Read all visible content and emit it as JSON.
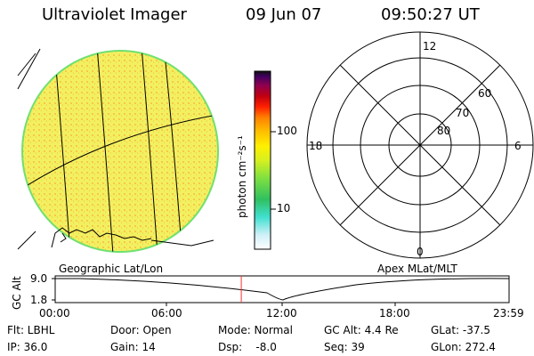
{
  "header": {
    "instrument": "Ultraviolet Imager",
    "date": "09 Jun 07",
    "time": "09:50:27 UT"
  },
  "colorbar": {
    "label": "photon cm⁻²s⁻¹",
    "ticks": [
      "100",
      "10"
    ],
    "colors": [
      "#ffffff",
      "#d0f0f8",
      "#40e0d0",
      "#30c060",
      "#80e040",
      "#d8f020",
      "#fff000",
      "#ffc000",
      "#ff8000",
      "#ff2000",
      "#c00010",
      "#900050",
      "#400060",
      "#101010"
    ]
  },
  "polar": {
    "hour_labels": {
      "top": "12",
      "left": "18",
      "right": "6",
      "bottom": "0"
    },
    "lat_labels": [
      "60",
      "70",
      "80"
    ]
  },
  "timeline": {
    "left_label": "Geographic Lat/Lon",
    "right_label": "Apex MLat/MLT",
    "axis_title": "GC Alt",
    "y_ticks": [
      "9.0",
      "1.8"
    ],
    "x_ticks": [
      "00:00",
      "06:00",
      "12:00",
      "18:00",
      "23:59"
    ],
    "current_time_fraction": 0.41
  },
  "info": {
    "row1": {
      "flt": "Flt: LBHL",
      "door": "Door: Open",
      "mode": "Mode: Normal",
      "gcalt": "GC Alt: 4.4 Re",
      "glat": "GLat: -37.5"
    },
    "row2": {
      "ip": "IP: 36.0",
      "gain": "Gain: 14",
      "dsp": "Dsp:    -8.0",
      "seq": "Seq: 39",
      "glon": "GLon: 272.4"
    }
  },
  "colors": {
    "disk_fill": "#f0f060",
    "disk_edge": "#70e070",
    "marker": "#ff3030"
  }
}
